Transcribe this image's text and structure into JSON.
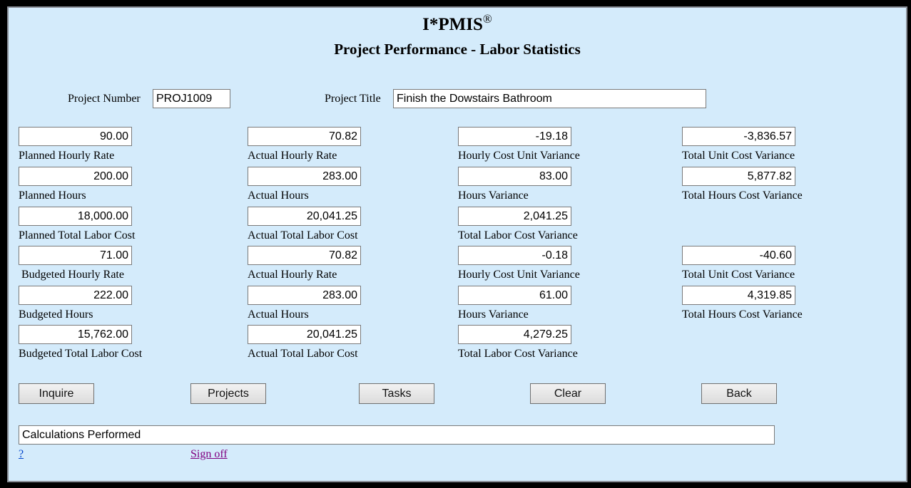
{
  "header": {
    "app_title": "I*PMIS",
    "registered_mark": "®",
    "page_title": "Project Performance - Labor Statistics"
  },
  "project": {
    "number_label": "Project Number",
    "number_value": "PROJ1009",
    "title_label": "Project Title",
    "title_value": "Finish the Dowstairs Bathroom"
  },
  "rows": [
    [
      {
        "value": "90.00",
        "label": "Planned Hourly Rate"
      },
      {
        "value": "70.82",
        "label": "Actual Hourly Rate"
      },
      {
        "value": "-19.18",
        "label": "Hourly Cost Unit Variance"
      },
      {
        "value": "-3,836.57",
        "label": "Total Unit Cost Variance"
      }
    ],
    [
      {
        "value": "200.00",
        "label": "Planned Hours"
      },
      {
        "value": "283.00",
        "label": "Actual Hours"
      },
      {
        "value": "83.00",
        "label": "Hours Variance"
      },
      {
        "value": "5,877.82",
        "label": "Total Hours Cost Variance"
      }
    ],
    [
      {
        "value": "18,000.00",
        "label": "Planned Total Labor Cost"
      },
      {
        "value": "20,041.25",
        "label": "Actual Total Labor Cost"
      },
      {
        "value": "2,041.25",
        "label": "Total Labor Cost Variance"
      }
    ],
    [
      {
        "value": "71.00",
        "label": " Budgeted Hourly Rate"
      },
      {
        "value": "70.82",
        "label": "Actual Hourly Rate"
      },
      {
        "value": "-0.18",
        "label": "Hourly Cost Unit Variance"
      },
      {
        "value": "-40.60",
        "label": "Total Unit Cost Variance"
      }
    ],
    [
      {
        "value": "222.00",
        "label": "Budgeted Hours"
      },
      {
        "value": "283.00",
        "label": "Actual Hours"
      },
      {
        "value": "61.00",
        "label": "Hours Variance"
      },
      {
        "value": "4,319.85",
        "label": "Total Hours Cost Variance"
      }
    ],
    [
      {
        "value": "15,762.00",
        "label": "Budgeted Total Labor Cost"
      },
      {
        "value": "20,041.25",
        "label": "Actual Total Labor Cost"
      },
      {
        "value": "4,279.25",
        "label": "Total Labor Cost Variance"
      }
    ]
  ],
  "buttons": [
    "Inquire",
    "Projects",
    "Tasks",
    "Clear",
    "Back"
  ],
  "status": "Calculations Performed",
  "links": {
    "help": "?",
    "signoff": "Sign off"
  },
  "colors": {
    "background": "#d4ebfb",
    "link": "#0044cc",
    "visited_link": "#800080"
  }
}
